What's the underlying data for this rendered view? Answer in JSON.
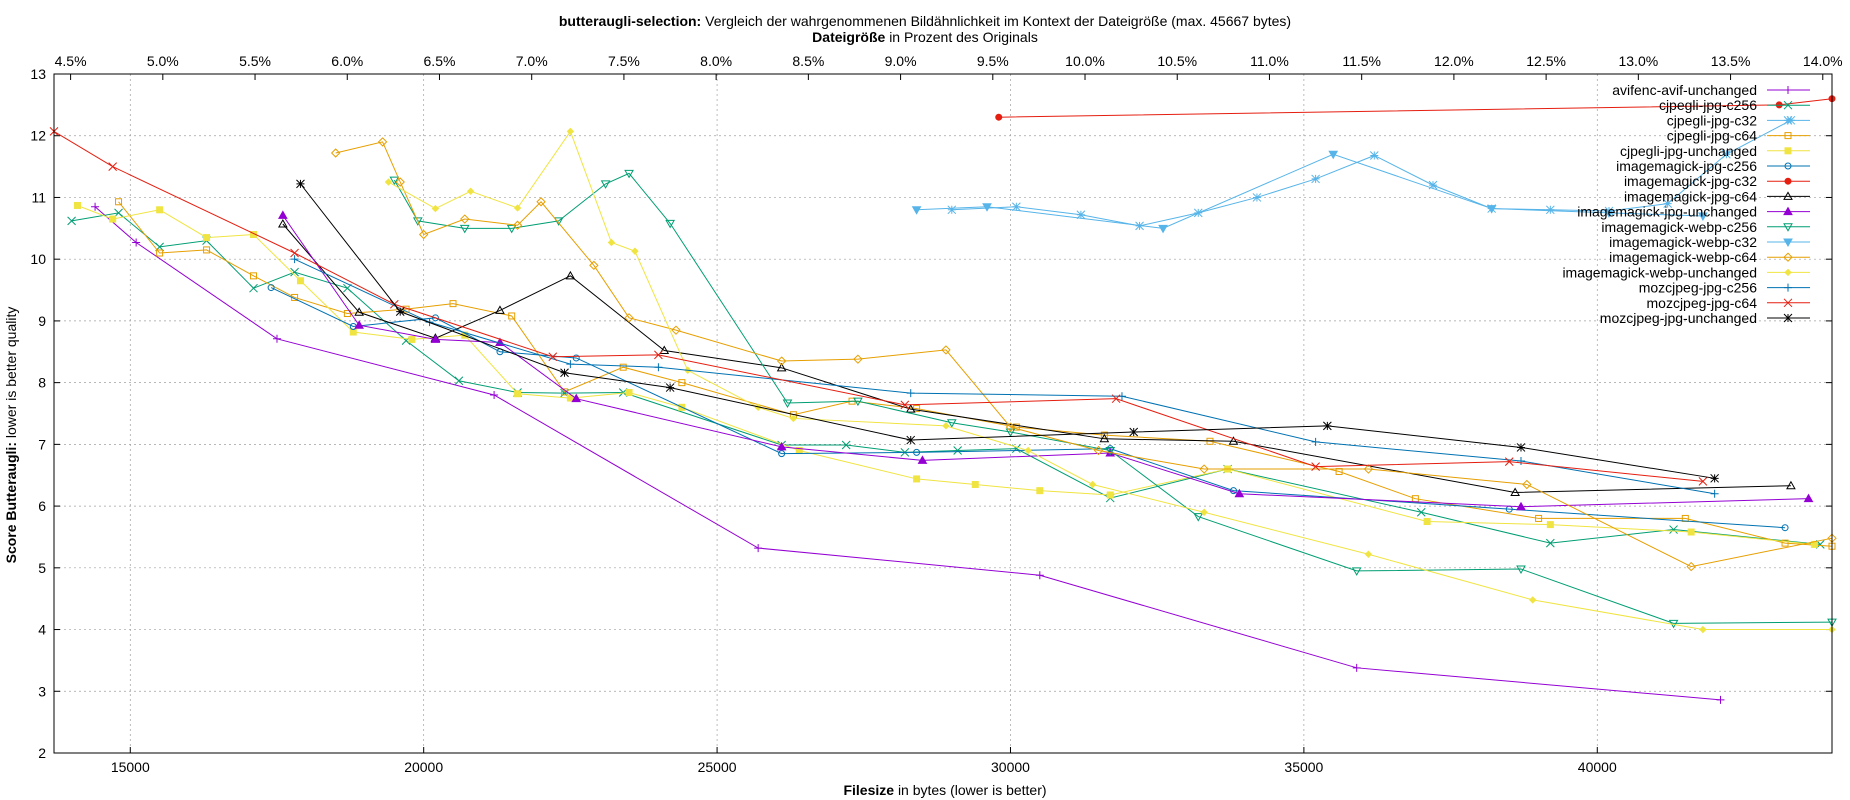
{
  "chart_data": {
    "type": "line",
    "title_bold": "butteraugli-selection:",
    "title_rest": "Vergleich der wahrgenommenen Bildähnlichkeit im Kontext der Dateigröße (max. 45667 bytes)",
    "x2label_bold": "Dateigröße",
    "x2label_rest": "in Prozent des Originals",
    "xlabel_bold": "Filesize",
    "xlabel_rest": "in bytes (lower is better)",
    "ylabel_bold": "Score Butteraugli:",
    "ylabel_rest": "lower is better quality",
    "xlim": [
      13700,
      44000
    ],
    "ylim": [
      2,
      13
    ],
    "x_ticks": [
      "15000",
      "20000",
      "25000",
      "30000",
      "35000",
      "40000"
    ],
    "x_tick_values": [
      15000,
      20000,
      25000,
      30000,
      35000,
      40000
    ],
    "y_ticks": [
      "2",
      "3",
      "4",
      "5",
      "6",
      "7",
      "8",
      "9",
      "10",
      "11",
      "12",
      "13"
    ],
    "y_tick_values": [
      2,
      3,
      4,
      5,
      6,
      7,
      8,
      9,
      10,
      11,
      12,
      13
    ],
    "x2_ticks": [
      "4.5%",
      "5.0%",
      "5.5%",
      "6.0%",
      "6.5%",
      "7.0%",
      "7.5%",
      "8.0%",
      "8.5%",
      "9.0%",
      "9.5%",
      "10.0%",
      "10.5%",
      "11.0%",
      "11.5%",
      "12.0%",
      "12.5%",
      "13.0%",
      "13.5%",
      "14.0%"
    ],
    "x2_tick_values": [
      4.5,
      5.0,
      5.5,
      6.0,
      6.5,
      7.0,
      7.5,
      8.0,
      8.5,
      9.0,
      9.5,
      10.0,
      10.5,
      11.0,
      11.5,
      12.0,
      12.5,
      13.0,
      13.5,
      14.0
    ],
    "x2lim": [
      4.41,
      14.05
    ],
    "grid": true,
    "legend_position": "top-right",
    "series": [
      {
        "name": "avifenc-avif-unchanged",
        "color": "#9400d3",
        "marker": "plus",
        "x": [
          14400,
          15100,
          17500,
          21200,
          25700,
          30500,
          35900,
          42100
        ],
        "y": [
          10.85,
          10.27,
          8.71,
          7.8,
          5.32,
          4.88,
          3.38,
          2.86
        ]
      },
      {
        "name": "cjpegli-jpg-c256",
        "color": "#009e73",
        "marker": "x",
        "x": [
          14000,
          14800,
          15500,
          16300,
          17100,
          17800,
          18700,
          19700,
          20600,
          21600,
          22400,
          23400,
          26100,
          27200,
          28200,
          29100,
          30100,
          31700,
          33700,
          37000,
          39200,
          41300,
          43800
        ],
        "y": [
          10.62,
          10.75,
          10.2,
          10.3,
          9.53,
          9.79,
          9.53,
          8.68,
          8.03,
          7.84,
          7.83,
          7.84,
          6.99,
          6.99,
          6.87,
          6.9,
          6.93,
          6.13,
          6.6,
          5.9,
          5.4,
          5.62,
          5.38
        ]
      },
      {
        "name": "cjpegli-jpg-c32",
        "color": "#56b4e9",
        "marker": "star",
        "x": [
          29000,
          30100,
          31200,
          32200,
          33200,
          34200,
          35200,
          36200,
          37200,
          38200,
          39200,
          40200,
          41200,
          42200,
          43300
        ],
        "y": [
          10.8,
          10.85,
          10.72,
          10.54,
          10.75,
          11.0,
          11.3,
          11.68,
          11.2,
          10.82,
          10.8,
          10.78,
          10.9,
          11.7,
          12.25
        ]
      },
      {
        "name": "cjpegli-jpg-c64",
        "color": "#e69f00",
        "marker": "square",
        "x": [
          14800,
          15500,
          16300,
          17100,
          17800,
          18700,
          19700,
          20500,
          21500,
          22400,
          23400,
          24400,
          26300,
          27300,
          28400,
          30100,
          31600,
          33400,
          35600,
          36900,
          39000,
          41500,
          43200,
          44000
        ],
        "y": [
          10.93,
          10.1,
          10.15,
          9.73,
          9.38,
          9.12,
          9.19,
          9.28,
          9.08,
          7.85,
          8.25,
          8.0,
          7.48,
          7.7,
          7.58,
          7.28,
          7.15,
          7.05,
          6.56,
          6.12,
          5.8,
          5.8,
          5.4,
          5.35
        ]
      },
      {
        "name": "cjpegli-jpg-unchanged",
        "color": "#f0e442",
        "marker": "fsquare",
        "x": [
          14100,
          14700,
          15500,
          16300,
          17100,
          17900,
          18800,
          19800,
          20700,
          21600,
          22500,
          23500,
          24400,
          26400,
          28400,
          29400,
          30500,
          31700,
          33700,
          37100,
          39200,
          41600,
          43700
        ],
        "y": [
          10.87,
          10.65,
          10.8,
          10.35,
          10.4,
          9.65,
          8.82,
          8.7,
          8.77,
          7.82,
          7.75,
          7.84,
          7.6,
          6.9,
          6.44,
          6.35,
          6.25,
          6.18,
          6.6,
          5.75,
          5.7,
          5.58,
          5.38
        ]
      },
      {
        "name": "imagemagick-jpg-c256",
        "color": "#0072b2",
        "marker": "circle",
        "x": [
          17400,
          18800,
          20200,
          21300,
          22600,
          26100,
          28400,
          31700,
          33800,
          38500,
          43200
        ],
        "y": [
          9.54,
          8.91,
          9.05,
          8.5,
          8.4,
          6.85,
          6.87,
          6.93,
          6.25,
          5.95,
          5.65
        ]
      },
      {
        "name": "imagemagick-jpg-c32",
        "color": "#e51e10",
        "marker": "fcircle",
        "x": [
          29800,
          43100,
          44000
        ],
        "y": [
          12.3,
          12.5,
          12.6
        ]
      },
      {
        "name": "imagemagick-jpg-c64",
        "color": "#000000",
        "marker": "triangle",
        "x": [
          17600,
          18900,
          20200,
          21300,
          22500,
          24100,
          26100,
          28300,
          31600,
          33800,
          38600,
          43300
        ],
        "y": [
          10.57,
          9.14,
          8.72,
          9.17,
          9.73,
          8.52,
          8.24,
          7.57,
          7.09,
          7.05,
          6.22,
          6.33
        ]
      },
      {
        "name": "imagemagick-jpg-unchanged",
        "color": "#9400d3",
        "marker": "ftriangle",
        "x": [
          17600,
          18900,
          20200,
          21300,
          22600,
          26100,
          28500,
          31700,
          33900,
          38700,
          43600
        ],
        "y": [
          10.71,
          8.93,
          8.7,
          8.65,
          7.74,
          6.96,
          6.74,
          6.86,
          6.2,
          5.99,
          6.12
        ]
      },
      {
        "name": "imagemagick-webp-c256",
        "color": "#009e73",
        "marker": "dtriangle",
        "x": [
          19500,
          19900,
          20700,
          21500,
          22300,
          23100,
          23500,
          24200,
          26200,
          27400,
          29000,
          30000,
          31700,
          33200,
          35900,
          38700,
          41300,
          44000
        ],
        "y": [
          11.28,
          10.62,
          10.5,
          10.5,
          10.62,
          11.22,
          11.39,
          10.58,
          7.67,
          7.7,
          7.35,
          7.2,
          6.9,
          5.83,
          4.95,
          4.98,
          4.1,
          4.12
        ]
      },
      {
        "name": "imagemagick-webp-c32",
        "color": "#56b4e9",
        "marker": "fdtriangle",
        "x": [
          28400,
          29600,
          32600,
          35500,
          38200,
          40200,
          41800
        ],
        "y": [
          10.8,
          10.85,
          10.5,
          11.7,
          10.82,
          10.75,
          10.7
        ]
      },
      {
        "name": "imagemagick-webp-c64",
        "color": "#e69f00",
        "marker": "diamond",
        "x": [
          18500,
          19300,
          19600,
          20000,
          20700,
          21600,
          22000,
          22900,
          23500,
          24300,
          26100,
          27400,
          28900,
          30000,
          31500,
          33300,
          36100,
          38800,
          41600,
          44000
        ],
        "y": [
          11.72,
          11.9,
          11.25,
          10.4,
          10.65,
          10.55,
          10.93,
          9.9,
          9.05,
          8.85,
          8.35,
          8.38,
          8.53,
          7.28,
          6.9,
          6.6,
          6.6,
          6.35,
          5.02,
          5.48
        ]
      },
      {
        "name": "imagemagick-webp-unchanged",
        "color": "#f0e442",
        "marker": "fdiamond",
        "x": [
          19400,
          20200,
          20800,
          21600,
          22500,
          23200,
          23600,
          24500,
          25700,
          26300,
          28900,
          30300,
          31400,
          33300,
          36100,
          38900,
          41800,
          44000
        ],
        "y": [
          11.25,
          10.82,
          11.1,
          10.83,
          12.07,
          10.27,
          10.13,
          8.2,
          7.6,
          7.42,
          7.3,
          6.9,
          6.35,
          5.9,
          5.22,
          4.48,
          4.0,
          4.0
        ]
      },
      {
        "name": "mozcjpeg-jpg-c256",
        "color": "#0072b2",
        "marker": "plus",
        "x": [
          17800,
          20100,
          22500,
          24000,
          28300,
          31900,
          35200,
          38700,
          42000
        ],
        "y": [
          10.0,
          8.98,
          8.3,
          8.25,
          7.83,
          7.78,
          7.04,
          6.73,
          6.2
        ]
      },
      {
        "name": "mozcjpeg-jpg-c64",
        "color": "#e51e10",
        "marker": "x",
        "x": [
          13700,
          14700,
          17800,
          19500,
          22200,
          24000,
          28200,
          31800,
          35200,
          38500,
          41800
        ],
        "y": [
          12.07,
          11.5,
          10.1,
          9.27,
          8.42,
          8.45,
          7.64,
          7.74,
          6.64,
          6.72,
          6.4
        ]
      },
      {
        "name": "mozcjpeg-jpg-unchanged",
        "color": "#000000",
        "marker": "star",
        "x": [
          17900,
          19600,
          22400,
          24200,
          28300,
          32100,
          35400,
          38700,
          42000
        ],
        "y": [
          11.22,
          9.15,
          8.16,
          7.92,
          7.07,
          7.2,
          7.3,
          6.95,
          6.45
        ]
      }
    ]
  }
}
